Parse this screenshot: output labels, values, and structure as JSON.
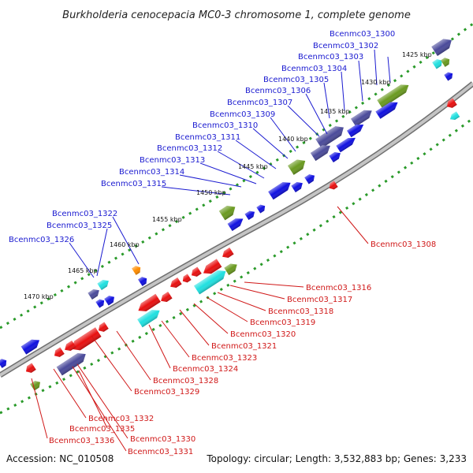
{
  "title": "Burkholderia cenocepacia MC0-3 chromosome 1, complete genome",
  "accession": "Accession: NC_010508",
  "summary": "Topology: circular; Length: 3,532,883 bp; Genes: 3,233",
  "colors": {
    "blue": "#1010e0",
    "red": "#e81010",
    "cyan": "#20e0e0",
    "green": "#6a9a20",
    "purple": "#4a4a9a",
    "orange": "#ff8c00",
    "dots": "#2a9a2a",
    "backbone": "#9a9a9a",
    "label_blue": "#1a1ad0",
    "label_red": "#d01818"
  },
  "scale_labels": [
    "1425 kbp",
    "1430 kbp",
    "1435 kbp",
    "1440 kbp",
    "1445 kbp",
    "1450 kbp",
    "1455 kbp",
    "1460 kbp",
    "1465 kbp",
    "1470 kbp"
  ],
  "upper_gene_labels": [
    "Bcenmc03_1300",
    "Bcenmc03_1302",
    "Bcenmc03_1303",
    "Bcenmc03_1304",
    "Bcenmc03_1305",
    "Bcenmc03_1306",
    "Bcenmc03_1307",
    "Bcenmc03_1309",
    "Bcenmc03_1310",
    "Bcenmc03_1311",
    "Bcenmc03_1312",
    "Bcenmc03_1313",
    "Bcenmc03_1314",
    "Bcenmc03_1315",
    "Bcenmc03_1322",
    "Bcenmc03_1325",
    "Bcenmc03_1326"
  ],
  "lower_gene_labels": [
    "Bcenmc03_1308",
    "Bcenmc03_1316",
    "Bcenmc03_1317",
    "Bcenmc03_1318",
    "Bcenmc03_1319",
    "Bcenmc03_1320",
    "Bcenmc03_1321",
    "Bcenmc03_1323",
    "Bcenmc03_1324",
    "Bcenmc03_1328",
    "Bcenmc03_1329",
    "Bcenmc03_1332",
    "Bcenmc03_1335",
    "Bcenmc03_1336",
    "Bcenmc03_1330",
    "Bcenmc03_1331"
  ]
}
